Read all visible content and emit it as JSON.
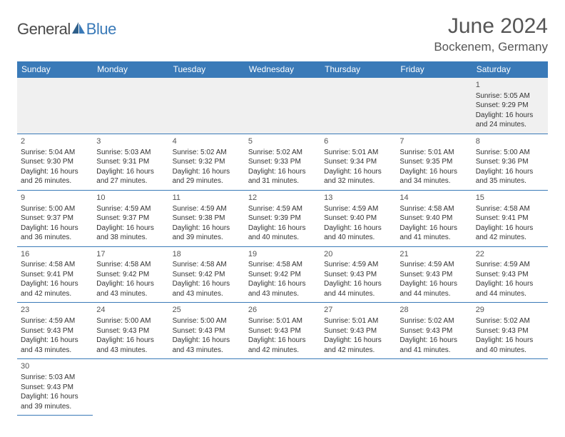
{
  "brand": {
    "part1": "General",
    "part2": "Blue"
  },
  "title": "June 2024",
  "location": "Bockenem, Germany",
  "colors": {
    "header_bg": "#3a7ab8",
    "header_text": "#ffffff",
    "border": "#3a7ab8",
    "week1_bg": "#f0f0f0",
    "body_text": "#333333",
    "title_text": "#555555"
  },
  "day_headers": [
    "Sunday",
    "Monday",
    "Tuesday",
    "Wednesday",
    "Thursday",
    "Friday",
    "Saturday"
  ],
  "weeks": [
    [
      null,
      null,
      null,
      null,
      null,
      null,
      {
        "n": "1",
        "sr": "Sunrise: 5:05 AM",
        "ss": "Sunset: 9:29 PM",
        "dl1": "Daylight: 16 hours",
        "dl2": "and 24 minutes."
      }
    ],
    [
      {
        "n": "2",
        "sr": "Sunrise: 5:04 AM",
        "ss": "Sunset: 9:30 PM",
        "dl1": "Daylight: 16 hours",
        "dl2": "and 26 minutes."
      },
      {
        "n": "3",
        "sr": "Sunrise: 5:03 AM",
        "ss": "Sunset: 9:31 PM",
        "dl1": "Daylight: 16 hours",
        "dl2": "and 27 minutes."
      },
      {
        "n": "4",
        "sr": "Sunrise: 5:02 AM",
        "ss": "Sunset: 9:32 PM",
        "dl1": "Daylight: 16 hours",
        "dl2": "and 29 minutes."
      },
      {
        "n": "5",
        "sr": "Sunrise: 5:02 AM",
        "ss": "Sunset: 9:33 PM",
        "dl1": "Daylight: 16 hours",
        "dl2": "and 31 minutes."
      },
      {
        "n": "6",
        "sr": "Sunrise: 5:01 AM",
        "ss": "Sunset: 9:34 PM",
        "dl1": "Daylight: 16 hours",
        "dl2": "and 32 minutes."
      },
      {
        "n": "7",
        "sr": "Sunrise: 5:01 AM",
        "ss": "Sunset: 9:35 PM",
        "dl1": "Daylight: 16 hours",
        "dl2": "and 34 minutes."
      },
      {
        "n": "8",
        "sr": "Sunrise: 5:00 AM",
        "ss": "Sunset: 9:36 PM",
        "dl1": "Daylight: 16 hours",
        "dl2": "and 35 minutes."
      }
    ],
    [
      {
        "n": "9",
        "sr": "Sunrise: 5:00 AM",
        "ss": "Sunset: 9:37 PM",
        "dl1": "Daylight: 16 hours",
        "dl2": "and 36 minutes."
      },
      {
        "n": "10",
        "sr": "Sunrise: 4:59 AM",
        "ss": "Sunset: 9:37 PM",
        "dl1": "Daylight: 16 hours",
        "dl2": "and 38 minutes."
      },
      {
        "n": "11",
        "sr": "Sunrise: 4:59 AM",
        "ss": "Sunset: 9:38 PM",
        "dl1": "Daylight: 16 hours",
        "dl2": "and 39 minutes."
      },
      {
        "n": "12",
        "sr": "Sunrise: 4:59 AM",
        "ss": "Sunset: 9:39 PM",
        "dl1": "Daylight: 16 hours",
        "dl2": "and 40 minutes."
      },
      {
        "n": "13",
        "sr": "Sunrise: 4:59 AM",
        "ss": "Sunset: 9:40 PM",
        "dl1": "Daylight: 16 hours",
        "dl2": "and 40 minutes."
      },
      {
        "n": "14",
        "sr": "Sunrise: 4:58 AM",
        "ss": "Sunset: 9:40 PM",
        "dl1": "Daylight: 16 hours",
        "dl2": "and 41 minutes."
      },
      {
        "n": "15",
        "sr": "Sunrise: 4:58 AM",
        "ss": "Sunset: 9:41 PM",
        "dl1": "Daylight: 16 hours",
        "dl2": "and 42 minutes."
      }
    ],
    [
      {
        "n": "16",
        "sr": "Sunrise: 4:58 AM",
        "ss": "Sunset: 9:41 PM",
        "dl1": "Daylight: 16 hours",
        "dl2": "and 42 minutes."
      },
      {
        "n": "17",
        "sr": "Sunrise: 4:58 AM",
        "ss": "Sunset: 9:42 PM",
        "dl1": "Daylight: 16 hours",
        "dl2": "and 43 minutes."
      },
      {
        "n": "18",
        "sr": "Sunrise: 4:58 AM",
        "ss": "Sunset: 9:42 PM",
        "dl1": "Daylight: 16 hours",
        "dl2": "and 43 minutes."
      },
      {
        "n": "19",
        "sr": "Sunrise: 4:58 AM",
        "ss": "Sunset: 9:42 PM",
        "dl1": "Daylight: 16 hours",
        "dl2": "and 43 minutes."
      },
      {
        "n": "20",
        "sr": "Sunrise: 4:59 AM",
        "ss": "Sunset: 9:43 PM",
        "dl1": "Daylight: 16 hours",
        "dl2": "and 44 minutes."
      },
      {
        "n": "21",
        "sr": "Sunrise: 4:59 AM",
        "ss": "Sunset: 9:43 PM",
        "dl1": "Daylight: 16 hours",
        "dl2": "and 44 minutes."
      },
      {
        "n": "22",
        "sr": "Sunrise: 4:59 AM",
        "ss": "Sunset: 9:43 PM",
        "dl1": "Daylight: 16 hours",
        "dl2": "and 44 minutes."
      }
    ],
    [
      {
        "n": "23",
        "sr": "Sunrise: 4:59 AM",
        "ss": "Sunset: 9:43 PM",
        "dl1": "Daylight: 16 hours",
        "dl2": "and 43 minutes."
      },
      {
        "n": "24",
        "sr": "Sunrise: 5:00 AM",
        "ss": "Sunset: 9:43 PM",
        "dl1": "Daylight: 16 hours",
        "dl2": "and 43 minutes."
      },
      {
        "n": "25",
        "sr": "Sunrise: 5:00 AM",
        "ss": "Sunset: 9:43 PM",
        "dl1": "Daylight: 16 hours",
        "dl2": "and 43 minutes."
      },
      {
        "n": "26",
        "sr": "Sunrise: 5:01 AM",
        "ss": "Sunset: 9:43 PM",
        "dl1": "Daylight: 16 hours",
        "dl2": "and 42 minutes."
      },
      {
        "n": "27",
        "sr": "Sunrise: 5:01 AM",
        "ss": "Sunset: 9:43 PM",
        "dl1": "Daylight: 16 hours",
        "dl2": "and 42 minutes."
      },
      {
        "n": "28",
        "sr": "Sunrise: 5:02 AM",
        "ss": "Sunset: 9:43 PM",
        "dl1": "Daylight: 16 hours",
        "dl2": "and 41 minutes."
      },
      {
        "n": "29",
        "sr": "Sunrise: 5:02 AM",
        "ss": "Sunset: 9:43 PM",
        "dl1": "Daylight: 16 hours",
        "dl2": "and 40 minutes."
      }
    ],
    [
      {
        "n": "30",
        "sr": "Sunrise: 5:03 AM",
        "ss": "Sunset: 9:43 PM",
        "dl1": "Daylight: 16 hours",
        "dl2": "and 39 minutes."
      },
      null,
      null,
      null,
      null,
      null,
      null
    ]
  ]
}
